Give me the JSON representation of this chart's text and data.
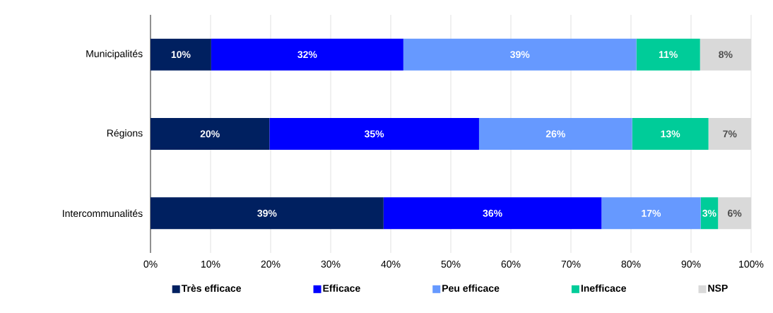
{
  "chart_data": {
    "type": "bar",
    "orientation": "horizontal",
    "stacked": true,
    "categories": [
      "Municipalités",
      "Régions",
      "Intercommunalités"
    ],
    "series": [
      {
        "name": "Très efficace",
        "color": "#002060",
        "values": [
          10.1,
          19.8,
          38.8
        ],
        "value_labels": [
          "10%",
          "20%",
          "39%"
        ]
      },
      {
        "name": "Efficace",
        "color": "#0000ff",
        "values": [
          32.0,
          34.9,
          36.3
        ],
        "value_labels": [
          "32%",
          "35%",
          "36%"
        ]
      },
      {
        "name": "Peu efficace",
        "color": "#6699ff",
        "values": [
          38.8,
          25.5,
          16.5
        ],
        "value_labels": [
          "39%",
          "26%",
          "17%"
        ]
      },
      {
        "name": "Inefficace",
        "color": "#00cc99",
        "values": [
          10.6,
          12.7,
          2.9
        ],
        "value_labels": [
          "11%",
          "13%",
          "3%"
        ]
      },
      {
        "name": "NSP",
        "color": "#d9d9d9",
        "values": [
          8.5,
          7.1,
          5.5
        ],
        "value_labels": [
          "8%",
          "7%",
          "6%"
        ]
      }
    ],
    "xlim": [
      0,
      100
    ],
    "xticks": [
      {
        "value": 0,
        "label": "0%"
      },
      {
        "value": 10,
        "label": "10%"
      },
      {
        "value": 20,
        "label": "20%"
      },
      {
        "value": 30,
        "label": "30%"
      },
      {
        "value": 40,
        "label": "40%"
      },
      {
        "value": 50,
        "label": "50%"
      },
      {
        "value": 60,
        "label": "60%"
      },
      {
        "value": 70,
        "label": "70%"
      },
      {
        "value": 80,
        "label": "80%"
      },
      {
        "value": 90,
        "label": "90%"
      },
      {
        "value": 100,
        "label": "100%"
      }
    ],
    "grid": "x",
    "legend": "bottom"
  }
}
